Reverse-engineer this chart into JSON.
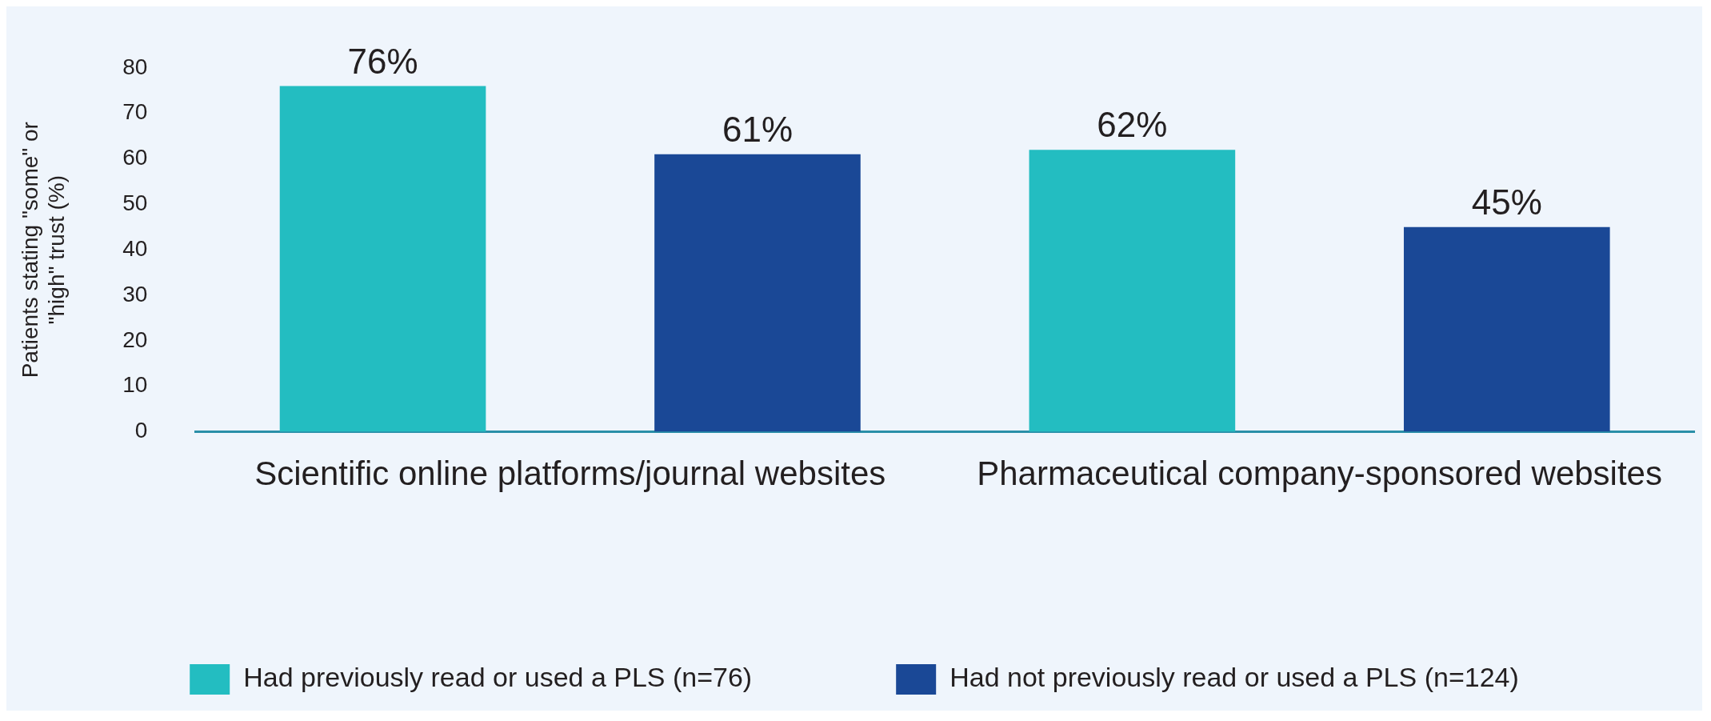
{
  "chart_data": {
    "type": "bar",
    "ylabel": "Patients stating \"some\" or \"high\" trust (%)",
    "categories": [
      "Scientific online platforms/journal websites",
      "Pharmaceutical company-sponsored websites"
    ],
    "series": [
      {
        "name": "Had previously read or used a PLS (n=76)",
        "color": "#23bdc1",
        "values": [
          76,
          62
        ],
        "value_labels": [
          "76%",
          "62%"
        ]
      },
      {
        "name": "Had not previously read or used a PLS (n=124)",
        "color": "#1a4896",
        "values": [
          61,
          45
        ],
        "value_labels": [
          "61%",
          "45%"
        ]
      }
    ],
    "ylim": [
      0,
      80
    ],
    "yticks": [
      0,
      10,
      20,
      30,
      40,
      50,
      60,
      70,
      80
    ],
    "grid": false,
    "legend": "bottom"
  }
}
